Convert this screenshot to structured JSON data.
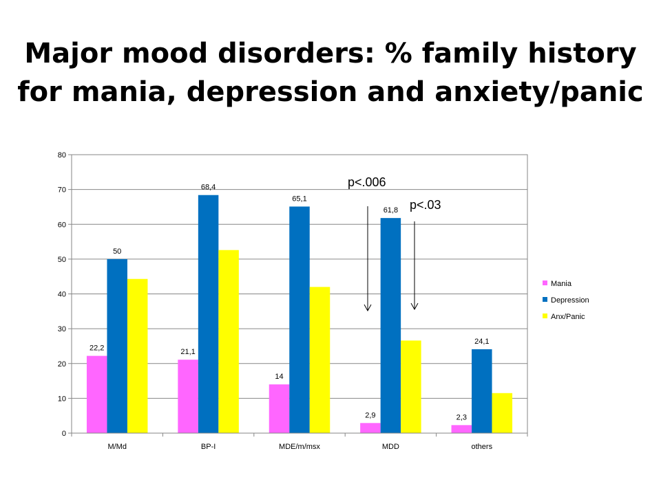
{
  "slide": {
    "title_line1": "Major mood disorders: % family history",
    "title_line2": "for mania, depression and anxiety/panic"
  },
  "chart_data": {
    "type": "bar",
    "categories": [
      "M/Md",
      "BP-I",
      "MDE/m/msx",
      "MDD",
      "others"
    ],
    "series": [
      {
        "name": "Mania",
        "color": "#ff66ff",
        "values": [
          22.2,
          21.1,
          14,
          2.9,
          2.3
        ],
        "labels": [
          "22,2",
          "21,1",
          "14",
          "2,9",
          "2,3"
        ]
      },
      {
        "name": "Depression",
        "color": "#0070c0",
        "values": [
          50,
          68.4,
          65.1,
          61.8,
          24.1
        ],
        "labels": [
          "50",
          "68,4",
          "65,1",
          "61,8",
          "24,1"
        ]
      },
      {
        "name": "Anx/Panic",
        "color": "#ffff00",
        "values": [
          44.3,
          52.6,
          42,
          26.6,
          11.5
        ],
        "labels": null
      }
    ],
    "ylim": [
      0,
      80
    ],
    "yticks": [
      0,
      10,
      20,
      30,
      40,
      50,
      60,
      70,
      80
    ],
    "grid": true,
    "legend_position": "right",
    "annotations": [
      {
        "text": "p<.006",
        "arrow_category": "MDD",
        "arrow_side": "left"
      },
      {
        "text": "p<.03",
        "arrow_category": "MDD",
        "arrow_side": "right"
      }
    ]
  }
}
